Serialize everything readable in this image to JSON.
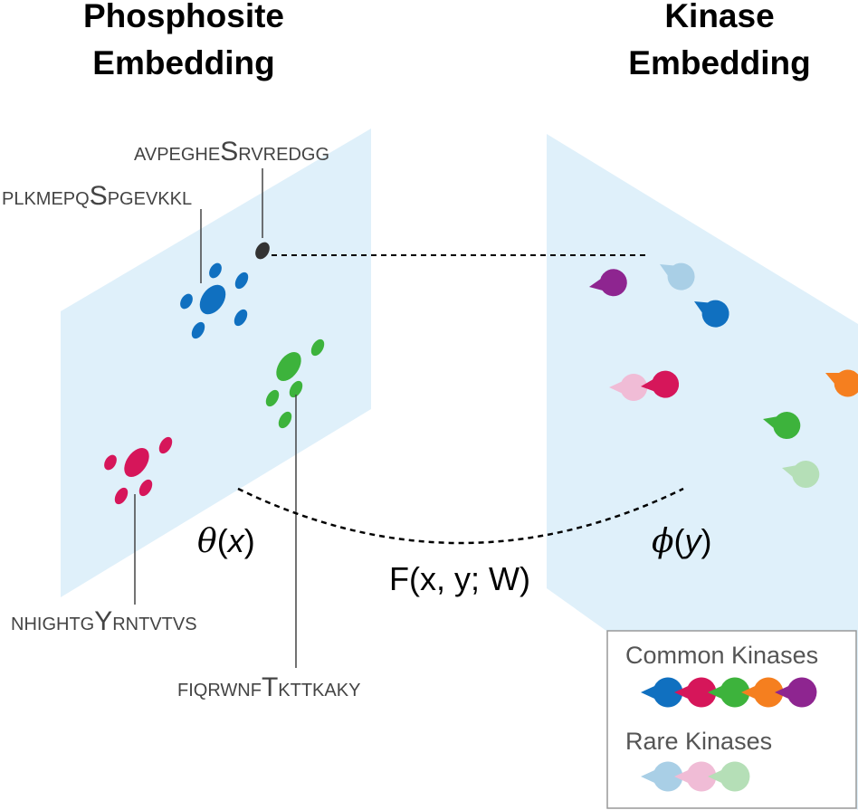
{
  "titles": {
    "phosphosite": [
      "Phosphosite",
      "Embedding"
    ],
    "kinase": [
      "Kinase",
      "Embedding"
    ]
  },
  "sequences": [
    {
      "pre": "AVPEGHE",
      "site": "S",
      "post": "RVREDGG"
    },
    {
      "pre": "PLKMEPQ",
      "site": "S",
      "post": "PGEVKKL"
    },
    {
      "pre": "NHIGHTG",
      "site": "Y",
      "post": "RNTVTVS"
    },
    {
      "pre": "FIQRWNF",
      "site": "T",
      "post": "KTTKAKY"
    }
  ],
  "functions": {
    "theta": {
      "name": "θ",
      "arg": "x"
    },
    "phi": {
      "name": "ϕ",
      "arg": "y"
    },
    "score": "F(x, y; W)"
  },
  "legend": {
    "common_label": "Common Kinases",
    "rare_label": "Rare Kinases",
    "common_colors": [
      "#1070c0",
      "#d6165a",
      "#3db33c",
      "#f57f1f",
      "#8e2590"
    ],
    "rare_colors": [
      "#a9cfe6",
      "#f0bcd6",
      "#b5dfb7"
    ]
  },
  "colors": {
    "plane": "#dff0fa",
    "query_site": "#333333",
    "connector": "#000000"
  }
}
